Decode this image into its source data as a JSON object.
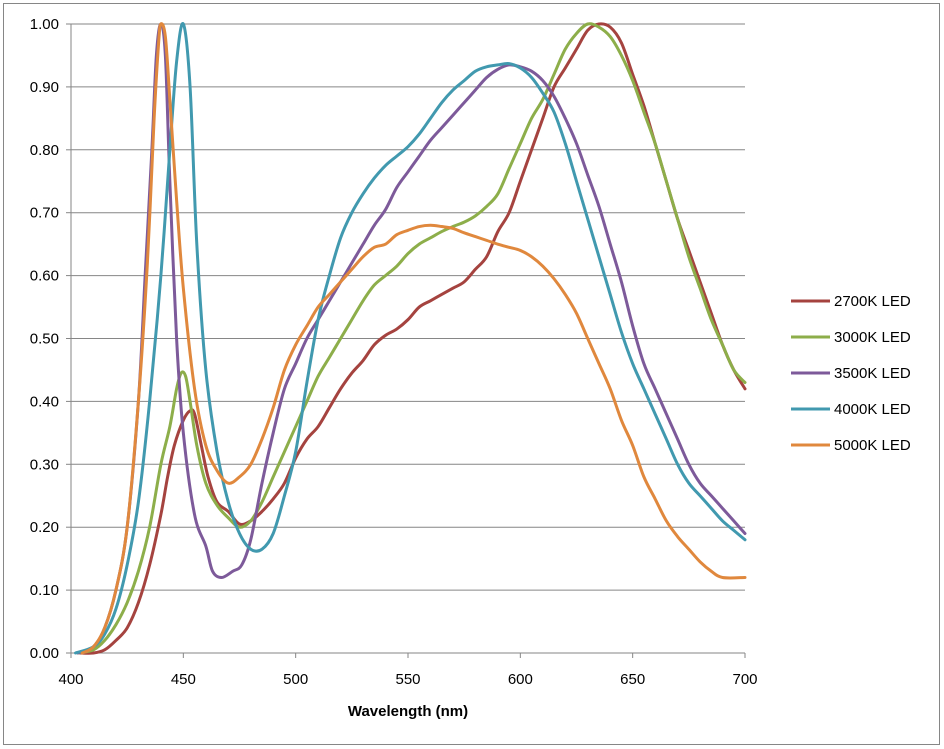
{
  "chart_data": {
    "type": "line",
    "title": "",
    "xlabel": "Wavelength (nm)",
    "ylabel": "",
    "xlim": [
      400,
      700
    ],
    "ylim": [
      0,
      1
    ],
    "x_ticks": [
      "400",
      "450",
      "500",
      "550",
      "600",
      "650",
      "700"
    ],
    "y_ticks": [
      "0.00",
      "0.10",
      "0.20",
      "0.30",
      "0.40",
      "0.50",
      "0.60",
      "0.70",
      "0.80",
      "0.90",
      "1.00"
    ],
    "grid": "horizontal",
    "legend_position": "right",
    "series": [
      {
        "name": "2700K LED",
        "color": "#A5433F",
        "points": [
          [
            404,
            0.0
          ],
          [
            410,
            0.0
          ],
          [
            415,
            0.005
          ],
          [
            420,
            0.02
          ],
          [
            425,
            0.04
          ],
          [
            430,
            0.08
          ],
          [
            435,
            0.14
          ],
          [
            440,
            0.22
          ],
          [
            443,
            0.28
          ],
          [
            446,
            0.33
          ],
          [
            450,
            0.37
          ],
          [
            453,
            0.385
          ],
          [
            455,
            0.38
          ],
          [
            458,
            0.33
          ],
          [
            461,
            0.28
          ],
          [
            465,
            0.24
          ],
          [
            470,
            0.225
          ],
          [
            475,
            0.205
          ],
          [
            480,
            0.21
          ],
          [
            485,
            0.225
          ],
          [
            490,
            0.245
          ],
          [
            495,
            0.27
          ],
          [
            500,
            0.31
          ],
          [
            505,
            0.34
          ],
          [
            510,
            0.36
          ],
          [
            515,
            0.39
          ],
          [
            520,
            0.42
          ],
          [
            525,
            0.445
          ],
          [
            530,
            0.465
          ],
          [
            535,
            0.49
          ],
          [
            540,
            0.505
          ],
          [
            545,
            0.515
          ],
          [
            550,
            0.53
          ],
          [
            555,
            0.55
          ],
          [
            560,
            0.56
          ],
          [
            565,
            0.57
          ],
          [
            570,
            0.58
          ],
          [
            575,
            0.59
          ],
          [
            580,
            0.61
          ],
          [
            585,
            0.63
          ],
          [
            590,
            0.67
          ],
          [
            595,
            0.7
          ],
          [
            600,
            0.75
          ],
          [
            605,
            0.8
          ],
          [
            610,
            0.85
          ],
          [
            615,
            0.9
          ],
          [
            620,
            0.93
          ],
          [
            625,
            0.96
          ],
          [
            630,
            0.99
          ],
          [
            635,
            1.0
          ],
          [
            640,
            0.995
          ],
          [
            645,
            0.97
          ],
          [
            650,
            0.92
          ],
          [
            655,
            0.87
          ],
          [
            660,
            0.81
          ],
          [
            665,
            0.75
          ],
          [
            670,
            0.69
          ],
          [
            675,
            0.64
          ],
          [
            680,
            0.59
          ],
          [
            685,
            0.54
          ],
          [
            690,
            0.49
          ],
          [
            695,
            0.45
          ],
          [
            700,
            0.42
          ]
        ]
      },
      {
        "name": "3000K LED",
        "color": "#8DAE4A",
        "points": [
          [
            403,
            0.0
          ],
          [
            410,
            0.005
          ],
          [
            415,
            0.02
          ],
          [
            420,
            0.045
          ],
          [
            425,
            0.08
          ],
          [
            430,
            0.13
          ],
          [
            435,
            0.2
          ],
          [
            440,
            0.3
          ],
          [
            444,
            0.36
          ],
          [
            447,
            0.42
          ],
          [
            449,
            0.445
          ],
          [
            451,
            0.44
          ],
          [
            453,
            0.4
          ],
          [
            456,
            0.33
          ],
          [
            460,
            0.27
          ],
          [
            465,
            0.235
          ],
          [
            470,
            0.215
          ],
          [
            475,
            0.2
          ],
          [
            480,
            0.21
          ],
          [
            485,
            0.24
          ],
          [
            490,
            0.28
          ],
          [
            495,
            0.32
          ],
          [
            500,
            0.36
          ],
          [
            505,
            0.4
          ],
          [
            510,
            0.44
          ],
          [
            515,
            0.47
          ],
          [
            520,
            0.5
          ],
          [
            525,
            0.53
          ],
          [
            530,
            0.56
          ],
          [
            535,
            0.585
          ],
          [
            540,
            0.6
          ],
          [
            545,
            0.615
          ],
          [
            550,
            0.635
          ],
          [
            555,
            0.65
          ],
          [
            560,
            0.66
          ],
          [
            565,
            0.67
          ],
          [
            570,
            0.678
          ],
          [
            575,
            0.685
          ],
          [
            580,
            0.695
          ],
          [
            585,
            0.71
          ],
          [
            590,
            0.73
          ],
          [
            595,
            0.77
          ],
          [
            600,
            0.81
          ],
          [
            605,
            0.85
          ],
          [
            610,
            0.88
          ],
          [
            615,
            0.92
          ],
          [
            620,
            0.96
          ],
          [
            625,
            0.985
          ],
          [
            630,
            1.0
          ],
          [
            635,
            0.995
          ],
          [
            640,
            0.98
          ],
          [
            645,
            0.95
          ],
          [
            650,
            0.91
          ],
          [
            655,
            0.86
          ],
          [
            660,
            0.81
          ],
          [
            665,
            0.75
          ],
          [
            670,
            0.69
          ],
          [
            675,
            0.63
          ],
          [
            680,
            0.58
          ],
          [
            685,
            0.53
          ],
          [
            690,
            0.49
          ],
          [
            695,
            0.45
          ],
          [
            700,
            0.43
          ]
        ]
      },
      {
        "name": "3500K LED",
        "color": "#7D5A9A",
        "points": [
          [
            403,
            0.0
          ],
          [
            410,
            0.01
          ],
          [
            415,
            0.04
          ],
          [
            420,
            0.1
          ],
          [
            425,
            0.2
          ],
          [
            430,
            0.4
          ],
          [
            433,
            0.6
          ],
          [
            436,
            0.8
          ],
          [
            438,
            0.95
          ],
          [
            440,
            1.0
          ],
          [
            442,
            0.95
          ],
          [
            444,
            0.75
          ],
          [
            447,
            0.5
          ],
          [
            450,
            0.35
          ],
          [
            455,
            0.22
          ],
          [
            460,
            0.17
          ],
          [
            463,
            0.13
          ],
          [
            467,
            0.12
          ],
          [
            472,
            0.13
          ],
          [
            476,
            0.14
          ],
          [
            480,
            0.18
          ],
          [
            485,
            0.27
          ],
          [
            490,
            0.35
          ],
          [
            495,
            0.42
          ],
          [
            500,
            0.46
          ],
          [
            505,
            0.5
          ],
          [
            510,
            0.53
          ],
          [
            515,
            0.56
          ],
          [
            520,
            0.59
          ],
          [
            525,
            0.62
          ],
          [
            530,
            0.65
          ],
          [
            535,
            0.68
          ],
          [
            540,
            0.705
          ],
          [
            545,
            0.74
          ],
          [
            550,
            0.765
          ],
          [
            555,
            0.79
          ],
          [
            560,
            0.815
          ],
          [
            565,
            0.835
          ],
          [
            570,
            0.855
          ],
          [
            575,
            0.875
          ],
          [
            580,
            0.895
          ],
          [
            585,
            0.915
          ],
          [
            590,
            0.928
          ],
          [
            595,
            0.935
          ],
          [
            600,
            0.932
          ],
          [
            605,
            0.925
          ],
          [
            610,
            0.91
          ],
          [
            615,
            0.885
          ],
          [
            620,
            0.85
          ],
          [
            625,
            0.81
          ],
          [
            630,
            0.76
          ],
          [
            635,
            0.71
          ],
          [
            640,
            0.65
          ],
          [
            645,
            0.59
          ],
          [
            650,
            0.52
          ],
          [
            655,
            0.46
          ],
          [
            660,
            0.42
          ],
          [
            665,
            0.38
          ],
          [
            670,
            0.34
          ],
          [
            675,
            0.3
          ],
          [
            680,
            0.27
          ],
          [
            685,
            0.25
          ],
          [
            690,
            0.23
          ],
          [
            695,
            0.21
          ],
          [
            700,
            0.19
          ]
        ]
      },
      {
        "name": "4000K LED",
        "color": "#4199AF",
        "points": [
          [
            402,
            0.0
          ],
          [
            410,
            0.01
          ],
          [
            415,
            0.03
          ],
          [
            420,
            0.07
          ],
          [
            425,
            0.14
          ],
          [
            430,
            0.24
          ],
          [
            435,
            0.4
          ],
          [
            440,
            0.6
          ],
          [
            444,
            0.8
          ],
          [
            447,
            0.94
          ],
          [
            450,
            1.0
          ],
          [
            453,
            0.9
          ],
          [
            456,
            0.65
          ],
          [
            460,
            0.45
          ],
          [
            465,
            0.32
          ],
          [
            470,
            0.24
          ],
          [
            475,
            0.19
          ],
          [
            480,
            0.165
          ],
          [
            485,
            0.165
          ],
          [
            490,
            0.19
          ],
          [
            495,
            0.25
          ],
          [
            500,
            0.32
          ],
          [
            505,
            0.43
          ],
          [
            510,
            0.53
          ],
          [
            515,
            0.6
          ],
          [
            520,
            0.66
          ],
          [
            525,
            0.7
          ],
          [
            530,
            0.73
          ],
          [
            535,
            0.755
          ],
          [
            540,
            0.775
          ],
          [
            545,
            0.79
          ],
          [
            550,
            0.805
          ],
          [
            555,
            0.825
          ],
          [
            560,
            0.85
          ],
          [
            565,
            0.875
          ],
          [
            570,
            0.895
          ],
          [
            575,
            0.91
          ],
          [
            580,
            0.925
          ],
          [
            585,
            0.932
          ],
          [
            590,
            0.935
          ],
          [
            595,
            0.937
          ],
          [
            600,
            0.93
          ],
          [
            605,
            0.915
          ],
          [
            610,
            0.89
          ],
          [
            615,
            0.86
          ],
          [
            620,
            0.81
          ],
          [
            625,
            0.75
          ],
          [
            630,
            0.69
          ],
          [
            635,
            0.63
          ],
          [
            640,
            0.57
          ],
          [
            645,
            0.51
          ],
          [
            650,
            0.46
          ],
          [
            655,
            0.42
          ],
          [
            660,
            0.38
          ],
          [
            665,
            0.34
          ],
          [
            670,
            0.3
          ],
          [
            675,
            0.27
          ],
          [
            680,
            0.25
          ],
          [
            685,
            0.23
          ],
          [
            690,
            0.21
          ],
          [
            695,
            0.195
          ],
          [
            700,
            0.18
          ]
        ]
      },
      {
        "name": "5000K LED",
        "color": "#E0883D",
        "points": [
          [
            405,
            0.0
          ],
          [
            410,
            0.01
          ],
          [
            415,
            0.04
          ],
          [
            420,
            0.1
          ],
          [
            425,
            0.2
          ],
          [
            430,
            0.4
          ],
          [
            434,
            0.62
          ],
          [
            437,
            0.85
          ],
          [
            439,
            0.97
          ],
          [
            440,
            1.0
          ],
          [
            442,
            0.98
          ],
          [
            444,
            0.88
          ],
          [
            447,
            0.72
          ],
          [
            450,
            0.58
          ],
          [
            455,
            0.42
          ],
          [
            460,
            0.33
          ],
          [
            465,
            0.29
          ],
          [
            470,
            0.27
          ],
          [
            475,
            0.28
          ],
          [
            480,
            0.3
          ],
          [
            485,
            0.34
          ],
          [
            490,
            0.39
          ],
          [
            495,
            0.45
          ],
          [
            500,
            0.49
          ],
          [
            505,
            0.52
          ],
          [
            510,
            0.55
          ],
          [
            515,
            0.57
          ],
          [
            520,
            0.59
          ],
          [
            525,
            0.61
          ],
          [
            530,
            0.63
          ],
          [
            535,
            0.645
          ],
          [
            540,
            0.65
          ],
          [
            545,
            0.665
          ],
          [
            550,
            0.672
          ],
          [
            555,
            0.678
          ],
          [
            560,
            0.68
          ],
          [
            565,
            0.678
          ],
          [
            570,
            0.675
          ],
          [
            575,
            0.668
          ],
          [
            580,
            0.662
          ],
          [
            585,
            0.656
          ],
          [
            590,
            0.65
          ],
          [
            595,
            0.645
          ],
          [
            600,
            0.64
          ],
          [
            605,
            0.63
          ],
          [
            610,
            0.615
          ],
          [
            615,
            0.595
          ],
          [
            620,
            0.57
          ],
          [
            625,
            0.54
          ],
          [
            630,
            0.5
          ],
          [
            635,
            0.46
          ],
          [
            640,
            0.42
          ],
          [
            645,
            0.37
          ],
          [
            650,
            0.33
          ],
          [
            655,
            0.28
          ],
          [
            660,
            0.245
          ],
          [
            665,
            0.21
          ],
          [
            670,
            0.185
          ],
          [
            675,
            0.165
          ],
          [
            680,
            0.145
          ],
          [
            685,
            0.13
          ],
          [
            690,
            0.12
          ],
          [
            700,
            0.12
          ]
        ]
      }
    ]
  }
}
